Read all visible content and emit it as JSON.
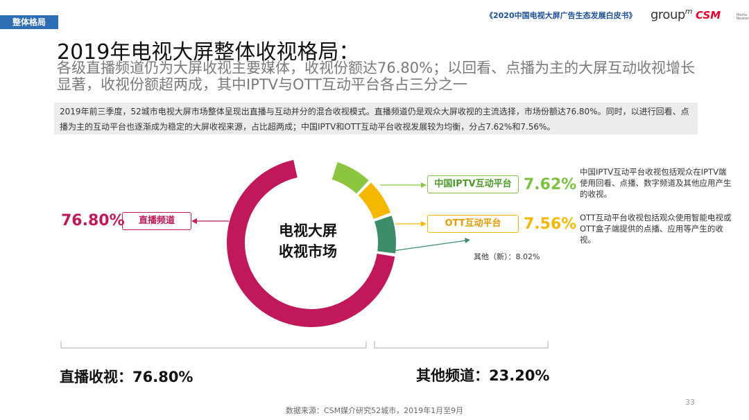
{
  "header": {
    "section_tag": "整体格局",
    "report_title": "《2020中国电视大屏广告生态发展白皮书》",
    "logo_group": "group",
    "logo_group_m": "m",
    "logo_csm": "CSM",
    "logo_csm_sub": "Media Research"
  },
  "title": "2019年电视大屏整体收视格局：",
  "subtitle": "各级直播频道仍为大屏收视主要媒体，收视份额达76.80%；以回看、点播为主的大屏互动收视增长显著，收视份额超两成，其中IPTV与OTT互动平台各占三分之一",
  "summary": "2019年前三季度，52城市电视大屏市场整体呈现出直播与互动并分的混合收视模式。直播频道仍是观众大屏收视的主流选择，市场份额达76.80%。同时，以进行回看、点播为主的互动平台也逐渐成为稳定的大屏收视来源，占比超两成；中国IPTV和OTT互动平台收视发展较为均衡，分占7.62%和7.56%。",
  "chart_data": {
    "type": "pie",
    "title": "电视大屏收视市场",
    "center_label_line1": "电视大屏",
    "center_label_line2": "收视市场",
    "segments": [
      {
        "name": "直播频道",
        "value": 76.8,
        "label": "76.80%",
        "color": "#c0185a"
      },
      {
        "name": "中国IPTV互动平台",
        "value": 7.62,
        "label": "7.62%",
        "color": "#8cc63f"
      },
      {
        "name": "OTT互动平台",
        "value": 7.56,
        "label": "7.56%",
        "color": "#f5b800"
      },
      {
        "name": "其他（新）",
        "value": 8.02,
        "label": "8.02%",
        "color": "#3d8c6a"
      }
    ],
    "other_label": "其他（新）：8.02%",
    "groups": [
      {
        "label": "直播收视：76.80%"
      },
      {
        "label": "其他频道：23.20%"
      }
    ]
  },
  "descriptions": {
    "iptv": "中国IPTV互动平台收视包括观众在IPTV端使用回看、点播、数字频道及其他应用产生的收视。",
    "ott": "OTT互动平台收视包括观众使用智能电视或OTT盒子端提供的点播、应用等产生的收视。"
  },
  "footer": {
    "source": "数据来源：CSM媒介研究52城市，2019年1月至9月",
    "page_number": "33"
  }
}
